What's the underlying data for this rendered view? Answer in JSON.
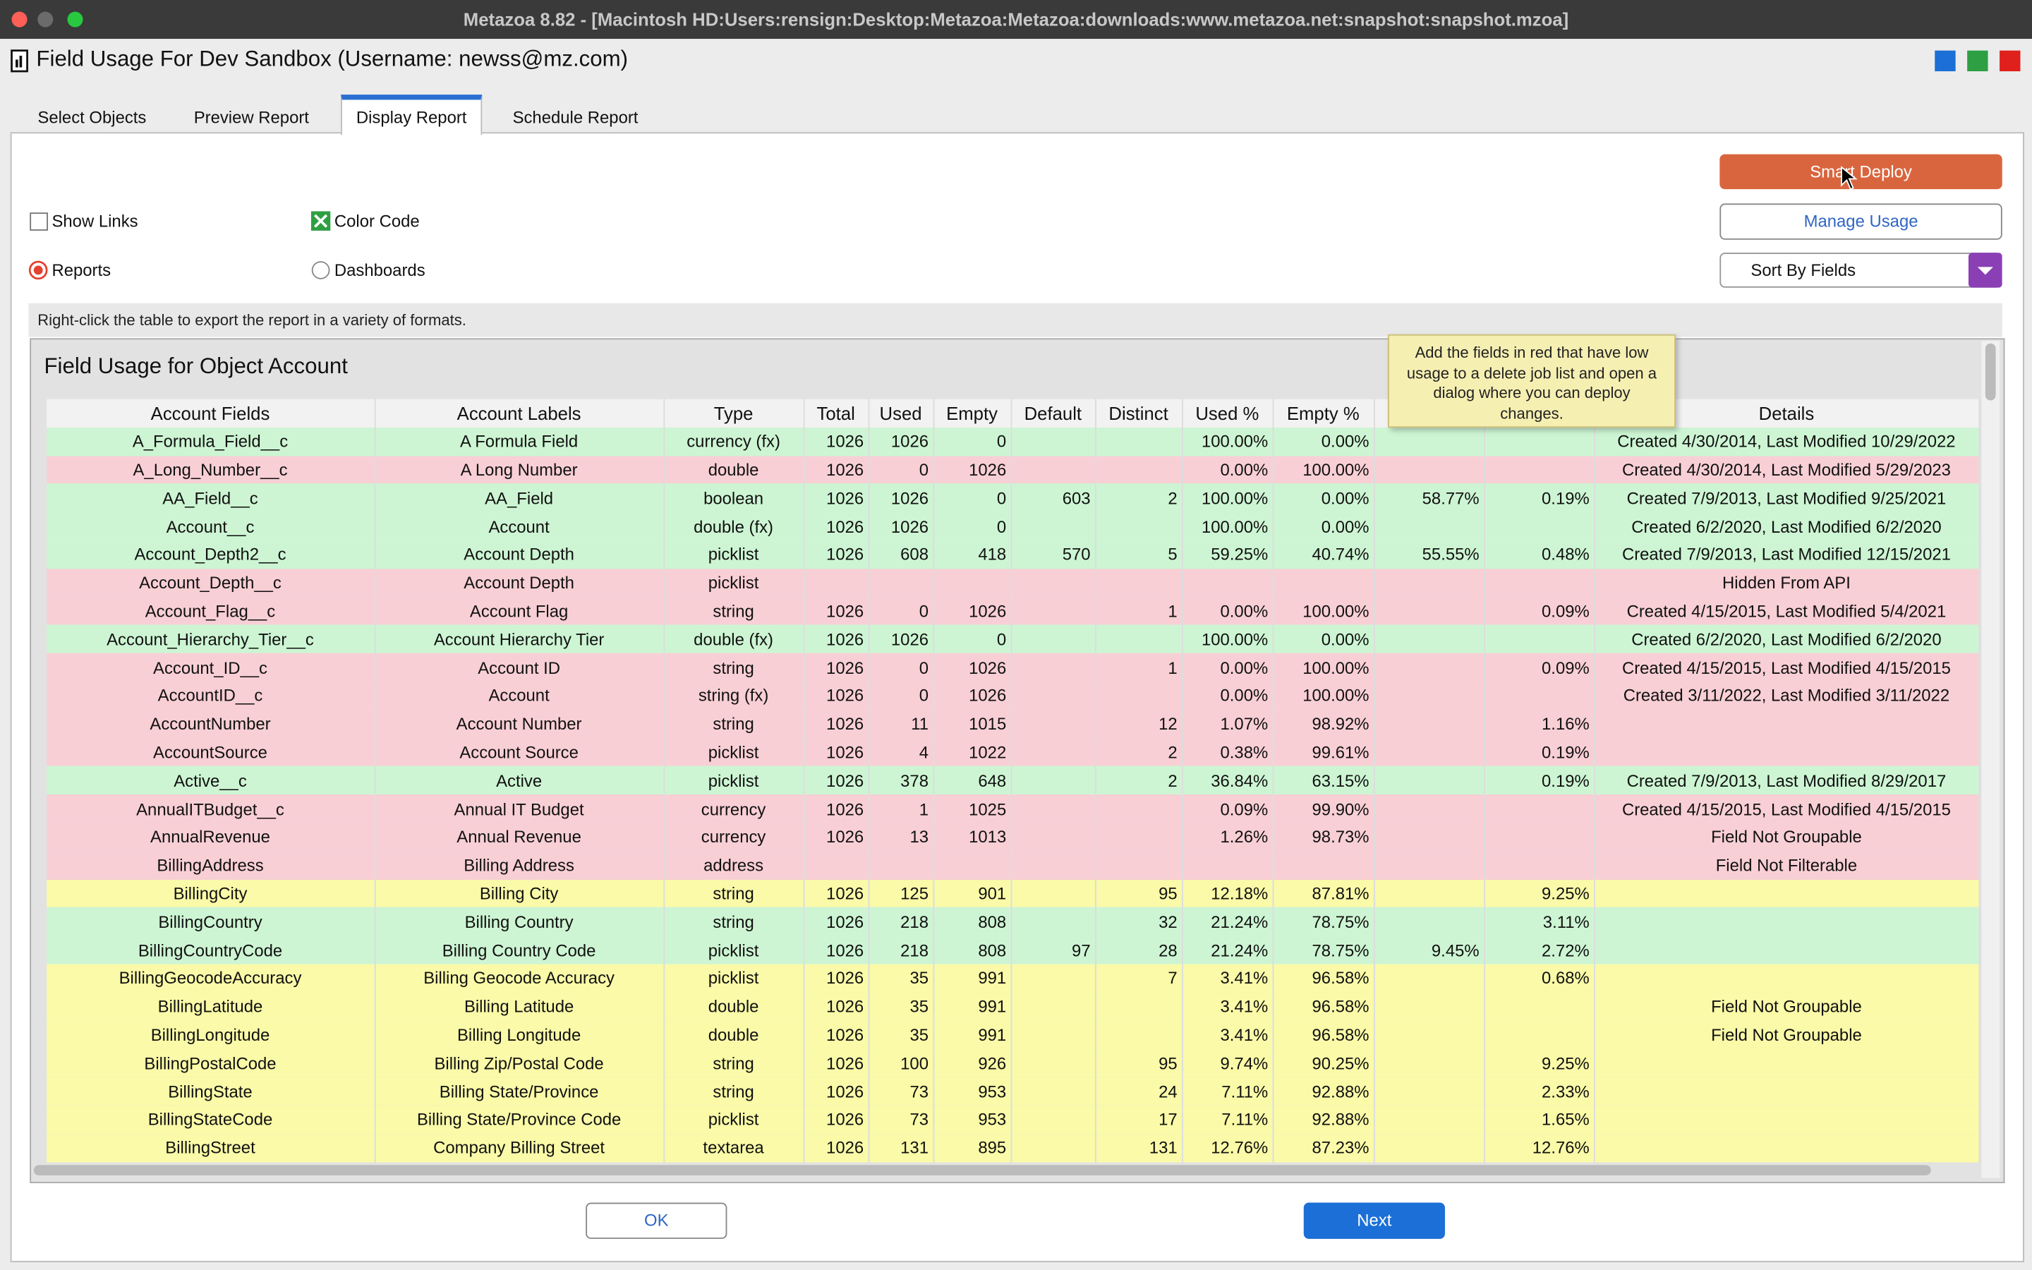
{
  "window_title": "Metazoa 8.82 - [Macintosh HD:Users:rensign:Desktop:Metazoa:Metazoa:downloads:www.metazoa.net:snapshot:snapshot.mzoa]",
  "header": {
    "title": "Field Usage For Dev Sandbox (Username: newss@mz.com)"
  },
  "tabs": [
    "Select Objects",
    "Preview Report",
    "Display Report",
    "Schedule Report"
  ],
  "options": {
    "show_links": "Show Links",
    "color_code": "Color Code",
    "reports": "Reports",
    "dashboards": "Dashboards"
  },
  "buttons": {
    "smart_deploy": "Smart Deploy",
    "manage_usage": "Manage Usage",
    "sort": "Sort By Fields",
    "ok": "OK",
    "next": "Next"
  },
  "hint": "Right-click the table to export the report in a variety of formats.",
  "tooltip": "Add the fields in red that have low usage to a delete job list and open a dialog where you can deploy changes.",
  "table": {
    "title": "Field Usage for Object Account",
    "columns": [
      "Account Fields",
      "Account Labels",
      "Type",
      "Total",
      "Used",
      "Empty",
      "Default",
      "Distinct",
      "Used %",
      "Empty %",
      null,
      null,
      "Details"
    ],
    "rows": [
      {
        "color": "#cdf5d3",
        "cells": [
          "A_Formula_Field__c",
          "A Formula Field",
          "currency (fx)",
          "1026",
          "1026",
          "0",
          null,
          null,
          "100.00%",
          "0.00%",
          null,
          null,
          "Created 4/30/2014, Last Modified 10/29/2022"
        ]
      },
      {
        "color": "#f8cfd5",
        "cells": [
          "A_Long_Number__c",
          "A Long Number",
          "double",
          "1026",
          "0",
          "1026",
          null,
          null,
          "0.00%",
          "100.00%",
          null,
          null,
          "Created 4/30/2014, Last Modified 5/29/2023"
        ]
      },
      {
        "color": "#cdf5d3",
        "cells": [
          "AA_Field__c",
          "AA_Field",
          "boolean",
          "1026",
          "1026",
          "0",
          "603",
          "2",
          "100.00%",
          "0.00%",
          "58.77%",
          "0.19%",
          "Created 7/9/2013, Last Modified 9/25/2021"
        ]
      },
      {
        "color": "#cdf5d3",
        "cells": [
          "Account__c",
          "Account",
          "double (fx)",
          "1026",
          "1026",
          "0",
          null,
          null,
          "100.00%",
          "0.00%",
          null,
          null,
          "Created 6/2/2020, Last Modified 6/2/2020"
        ]
      },
      {
        "color": "#cdf5d3",
        "cells": [
          "Account_Depth2__c",
          "Account Depth",
          "picklist",
          "1026",
          "608",
          "418",
          "570",
          "5",
          "59.25%",
          "40.74%",
          "55.55%",
          "0.48%",
          "Created 7/9/2013, Last Modified 12/15/2021"
        ]
      },
      {
        "color": "#f8cfd5",
        "cells": [
          "Account_Depth__c",
          "Account Depth",
          "picklist",
          null,
          null,
          null,
          null,
          null,
          null,
          null,
          null,
          null,
          "Hidden From API"
        ]
      },
      {
        "color": "#f8cfd5",
        "cells": [
          "Account_Flag__c",
          "Account Flag",
          "string",
          "1026",
          "0",
          "1026",
          null,
          "1",
          "0.00%",
          "100.00%",
          null,
          "0.09%",
          "Created 4/15/2015, Last Modified 5/4/2021"
        ]
      },
      {
        "color": "#cdf5d3",
        "cells": [
          "Account_Hierarchy_Tier__c",
          "Account Hierarchy Tier",
          "double (fx)",
          "1026",
          "1026",
          "0",
          null,
          null,
          "100.00%",
          "0.00%",
          null,
          null,
          "Created 6/2/2020, Last Modified 6/2/2020"
        ]
      },
      {
        "color": "#f8cfd5",
        "cells": [
          "Account_ID__c",
          "Account ID",
          "string",
          "1026",
          "0",
          "1026",
          null,
          "1",
          "0.00%",
          "100.00%",
          null,
          "0.09%",
          "Created 4/15/2015, Last Modified 4/15/2015"
        ]
      },
      {
        "color": "#f8cfd5",
        "cells": [
          "AccountID__c",
          "Account",
          "string (fx)",
          "1026",
          "0",
          "1026",
          null,
          null,
          "0.00%",
          "100.00%",
          null,
          null,
          "Created 3/11/2022, Last Modified 3/11/2022"
        ]
      },
      {
        "color": "#f8cfd5",
        "cells": [
          "AccountNumber",
          "Account Number",
          "string",
          "1026",
          "11",
          "1015",
          null,
          "12",
          "1.07%",
          "98.92%",
          null,
          "1.16%",
          null
        ]
      },
      {
        "color": "#f8cfd5",
        "cells": [
          "AccountSource",
          "Account Source",
          "picklist",
          "1026",
          "4",
          "1022",
          null,
          "2",
          "0.38%",
          "99.61%",
          null,
          "0.19%",
          null
        ]
      },
      {
        "color": "#cdf5d3",
        "cells": [
          "Active__c",
          "Active",
          "picklist",
          "1026",
          "378",
          "648",
          null,
          "2",
          "36.84%",
          "63.15%",
          null,
          "0.19%",
          "Created 7/9/2013, Last Modified 8/29/2017"
        ]
      },
      {
        "color": "#f8cfd5",
        "cells": [
          "AnnualITBudget__c",
          "Annual IT Budget",
          "currency",
          "1026",
          "1",
          "1025",
          null,
          null,
          "0.09%",
          "99.90%",
          null,
          null,
          "Created 4/15/2015, Last Modified 4/15/2015"
        ]
      },
      {
        "color": "#f8cfd5",
        "cells": [
          "AnnualRevenue",
          "Annual Revenue",
          "currency",
          "1026",
          "13",
          "1013",
          null,
          null,
          "1.26%",
          "98.73%",
          null,
          null,
          "Field Not Groupable"
        ]
      },
      {
        "color": "#f8cfd5",
        "cells": [
          "BillingAddress",
          "Billing Address",
          "address",
          null,
          null,
          null,
          null,
          null,
          null,
          null,
          null,
          null,
          "Field Not Filterable"
        ]
      },
      {
        "color": "#fafaa8",
        "cells": [
          "BillingCity",
          "Billing City",
          "string",
          "1026",
          "125",
          "901",
          null,
          "95",
          "12.18%",
          "87.81%",
          null,
          "9.25%",
          null
        ]
      },
      {
        "color": "#cdf5d3",
        "cells": [
          "BillingCountry",
          "Billing Country",
          "string",
          "1026",
          "218",
          "808",
          null,
          "32",
          "21.24%",
          "78.75%",
          null,
          "3.11%",
          null
        ]
      },
      {
        "color": "#cdf5d3",
        "cells": [
          "BillingCountryCode",
          "Billing Country Code",
          "picklist",
          "1026",
          "218",
          "808",
          "97",
          "28",
          "21.24%",
          "78.75%",
          "9.45%",
          "2.72%",
          null
        ]
      },
      {
        "color": "#fafaa8",
        "cells": [
          "BillingGeocodeAccuracy",
          "Billing Geocode Accuracy",
          "picklist",
          "1026",
          "35",
          "991",
          null,
          "7",
          "3.41%",
          "96.58%",
          null,
          "0.68%",
          null
        ]
      },
      {
        "color": "#fafaa8",
        "cells": [
          "BillingLatitude",
          "Billing Latitude",
          "double",
          "1026",
          "35",
          "991",
          null,
          null,
          "3.41%",
          "96.58%",
          null,
          null,
          "Field Not Groupable"
        ]
      },
      {
        "color": "#fafaa8",
        "cells": [
          "BillingLongitude",
          "Billing Longitude",
          "double",
          "1026",
          "35",
          "991",
          null,
          null,
          "3.41%",
          "96.58%",
          null,
          null,
          "Field Not Groupable"
        ]
      },
      {
        "color": "#fafaa8",
        "cells": [
          "BillingPostalCode",
          "Billing Zip/Postal Code",
          "string",
          "1026",
          "100",
          "926",
          null,
          "95",
          "9.74%",
          "90.25%",
          null,
          "9.25%",
          null
        ]
      },
      {
        "color": "#fafaa8",
        "cells": [
          "BillingState",
          "Billing State/Province",
          "string",
          "1026",
          "73",
          "953",
          null,
          "24",
          "7.11%",
          "92.88%",
          null,
          "2.33%",
          null
        ]
      },
      {
        "color": "#fafaa8",
        "cells": [
          "BillingStateCode",
          "Billing State/Province Code",
          "picklist",
          "1026",
          "73",
          "953",
          null,
          "17",
          "7.11%",
          "92.88%",
          null,
          "1.65%",
          null
        ]
      },
      {
        "color": "#fafaa8",
        "cells": [
          "BillingStreet",
          "Company Billing Street",
          "textarea",
          "1026",
          "131",
          "895",
          null,
          "131",
          "12.76%",
          "87.23%",
          null,
          "12.76%",
          null
        ]
      }
    ]
  }
}
